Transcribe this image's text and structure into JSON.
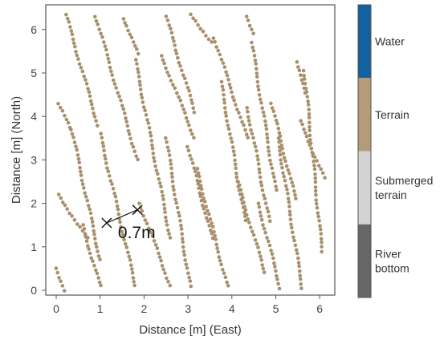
{
  "chart_data": {
    "type": "scatter",
    "xlabel": "Distance [m] (East)",
    "ylabel": "Distance [m] (North)",
    "xlim": [
      -0.25,
      6.3
    ],
    "ylim": [
      -0.2,
      6.5
    ],
    "xticks": [
      0,
      1,
      2,
      3,
      4,
      5,
      6
    ],
    "yticks": [
      0,
      1,
      2,
      3,
      4,
      5,
      6
    ],
    "grid": false,
    "point_color": "#a8906c",
    "segments": [
      {
        "x": [
          0.22,
          0.95
        ],
        "y": [
          6.35,
          3.8
        ]
      },
      {
        "x": [
          0.0,
          0.2
        ],
        "y": [
          0.5,
          0.0
        ]
      },
      {
        "x": [
          0.05,
          0.3
        ],
        "y": [
          4.3,
          3.75
        ]
      },
      {
        "x": [
          0.05,
          0.7
        ],
        "y": [
          2.2,
          1.2
        ]
      },
      {
        "x": [
          0.35,
          1.0
        ],
        "y": [
          3.7,
          0.7
        ]
      },
      {
        "x": [
          0.6,
          1.0
        ],
        "y": [
          1.5,
          0.1
        ]
      },
      {
        "x": [
          0.9,
          1.85
        ],
        "y": [
          6.3,
          3.0
        ]
      },
      {
        "x": [
          1.0,
          1.8
        ],
        "y": [
          3.6,
          0.1
        ]
      },
      {
        "x": [
          1.55,
          1.85
        ],
        "y": [
          6.25,
          5.45
        ]
      },
      {
        "x": [
          1.8,
          2.6
        ],
        "y": [
          5.3,
          1.2
        ]
      },
      {
        "x": [
          1.9,
          2.6
        ],
        "y": [
          2.0,
          0.1
        ]
      },
      {
        "x": [
          2.5,
          3.15
        ],
        "y": [
          6.3,
          4.1
        ]
      },
      {
        "x": [
          2.4,
          3.15
        ],
        "y": [
          5.4,
          3.5
        ]
      },
      {
        "x": [
          2.5,
          3.05
        ],
        "y": [
          3.5,
          0.1
        ]
      },
      {
        "x": [
          3.05,
          3.55
        ],
        "y": [
          6.35,
          5.7
        ]
      },
      {
        "x": [
          3.0,
          3.55
        ],
        "y": [
          3.3,
          1.2
        ]
      },
      {
        "x": [
          3.2,
          3.9
        ],
        "y": [
          2.8,
          0.1
        ]
      },
      {
        "x": [
          3.6,
          4.35
        ],
        "y": [
          5.8,
          3.5
        ]
      },
      {
        "x": [
          3.75,
          4.3
        ],
        "y": [
          4.8,
          1.6
        ]
      },
      {
        "x": [
          4.35,
          4.5
        ],
        "y": [
          6.3,
          5.9
        ]
      },
      {
        "x": [
          4.1,
          4.75
        ],
        "y": [
          2.6,
          0.4
        ]
      },
      {
        "x": [
          4.35,
          4.85
        ],
        "y": [
          4.2,
          1.6
        ]
      },
      {
        "x": [
          4.45,
          5.0
        ],
        "y": [
          5.7,
          2.3
        ]
      },
      {
        "x": [
          4.6,
          5.1
        ],
        "y": [
          2.0,
          0.05
        ]
      },
      {
        "x": [
          4.9,
          5.45
        ],
        "y": [
          4.3,
          2.1
        ]
      },
      {
        "x": [
          5.05,
          5.6
        ],
        "y": [
          3.5,
          0.05
        ]
      },
      {
        "x": [
          5.5,
          5.65
        ],
        "y": [
          5.25,
          4.55
        ]
      },
      {
        "x": [
          5.55,
          6.1
        ],
        "y": [
          3.9,
          2.6
        ]
      },
      {
        "x": [
          5.65,
          6.05
        ],
        "y": [
          5.05,
          0.9
        ]
      }
    ],
    "annotation": {
      "label": "0.7m",
      "from": {
        "x": 1.15,
        "y": 1.55
      },
      "to": {
        "x": 1.85,
        "y": 1.85
      }
    },
    "legend": {
      "placement": "right",
      "entries": [
        {
          "label": "Water",
          "color": "#1261a0"
        },
        {
          "label": "Terrain",
          "color": "#b59c79"
        },
        {
          "label": "Submerged terrain",
          "color": "#d3d3d3"
        },
        {
          "label": "River bottom",
          "color": "#666666"
        }
      ]
    }
  }
}
